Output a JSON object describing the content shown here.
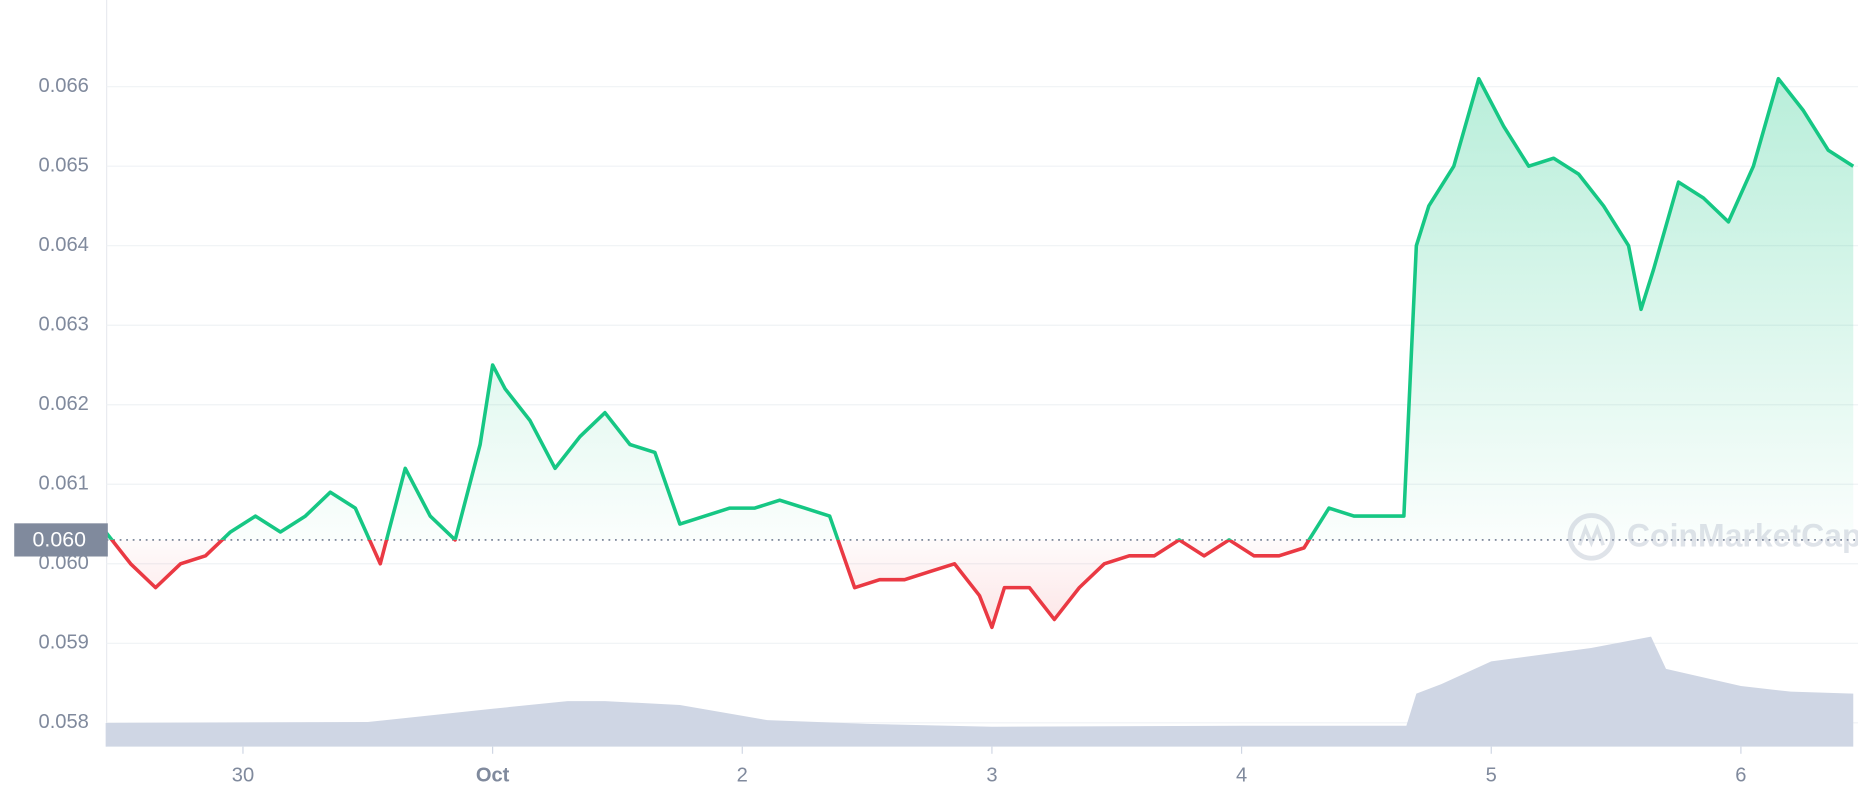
{
  "chart_data": {
    "type": "line",
    "x": [
      -0.55,
      -0.45,
      -0.35,
      -0.25,
      -0.15,
      -0.05,
      0.05,
      0.15,
      0.25,
      0.35,
      0.45,
      0.55,
      0.65,
      0.75,
      0.85,
      0.95,
      1.0,
      1.05,
      1.15,
      1.25,
      1.35,
      1.45,
      1.55,
      1.65,
      1.75,
      1.85,
      1.95,
      2.05,
      2.15,
      2.25,
      2.35,
      2.45,
      2.55,
      2.65,
      2.75,
      2.85,
      2.95,
      3.0,
      3.05,
      3.15,
      3.25,
      3.35,
      3.45,
      3.55,
      3.65,
      3.75,
      3.85,
      3.95,
      4.05,
      4.15,
      4.25,
      4.35,
      4.45,
      4.55,
      4.65,
      4.7,
      4.75,
      4.85,
      4.95,
      5.05,
      5.15,
      5.25,
      5.35,
      5.45,
      5.55,
      5.6,
      5.65,
      5.75,
      5.85,
      5.95,
      6.05,
      6.15,
      6.25,
      6.35,
      6.45
    ],
    "values": [
      0.0604,
      0.06,
      0.0597,
      0.06,
      0.0601,
      0.0604,
      0.0606,
      0.0604,
      0.0606,
      0.0609,
      0.0607,
      0.06,
      0.0612,
      0.0606,
      0.0603,
      0.0615,
      0.0625,
      0.0622,
      0.0618,
      0.0612,
      0.0616,
      0.0619,
      0.0615,
      0.0614,
      0.0605,
      0.0606,
      0.0607,
      0.0607,
      0.0608,
      0.0607,
      0.0606,
      0.0597,
      0.0598,
      0.0598,
      0.0599,
      0.06,
      0.0596,
      0.0592,
      0.0597,
      0.0597,
      0.0593,
      0.0597,
      0.06,
      0.0601,
      0.0601,
      0.0603,
      0.0601,
      0.0603,
      0.0601,
      0.0601,
      0.0602,
      0.0607,
      0.0606,
      0.0606,
      0.0606,
      0.064,
      0.0645,
      0.065,
      0.0661,
      0.0655,
      0.065,
      0.0651,
      0.0649,
      0.0645,
      0.064,
      0.0632,
      0.0637,
      0.0648,
      0.0646,
      0.0643,
      0.065,
      0.0661,
      0.0657,
      0.0652,
      0.065
    ],
    "up_color": "#16c784",
    "down_color": "#ea3943",
    "baseline": {
      "value": 0.0603,
      "label": "0.060"
    },
    "xlim": [
      -0.546,
      6.469
    ],
    "xticks": [
      {
        "value": 0,
        "label": "30"
      },
      {
        "value": 1,
        "label": "Oct",
        "bold": true
      },
      {
        "value": 2,
        "label": "2"
      },
      {
        "value": 3,
        "label": "3"
      },
      {
        "value": 4,
        "label": "4"
      },
      {
        "value": 5,
        "label": "5"
      },
      {
        "value": 6,
        "label": "6"
      }
    ],
    "ylim": [
      0.0577,
      0.06709
    ],
    "yticks": [
      {
        "value": 0.058,
        "label": "0.058"
      },
      {
        "value": 0.059,
        "label": "0.059"
      },
      {
        "value": 0.06,
        "label": "0.060"
      },
      {
        "value": 0.061,
        "label": "0.061"
      },
      {
        "value": 0.062,
        "label": "0.062"
      },
      {
        "value": 0.063,
        "label": "0.063"
      },
      {
        "value": 0.064,
        "label": "0.064"
      },
      {
        "value": 0.065,
        "label": "0.065"
      },
      {
        "value": 0.066,
        "label": "0.066"
      }
    ],
    "grid": true,
    "volume_x": [
      -0.55,
      0.5,
      1.0,
      1.3,
      1.45,
      1.75,
      2.1,
      2.5,
      3.0,
      4.0,
      4.66,
      4.7,
      4.8,
      5.0,
      5.4,
      5.64,
      5.7,
      6.0,
      6.2,
      6.45
    ],
    "volume_values": [
      12.5,
      13,
      20,
      24,
      24,
      22,
      14,
      12,
      10.5,
      11,
      11,
      28,
      33,
      45,
      52,
      58,
      41,
      32,
      29,
      28
    ],
    "volume_color": "#cfd6e4",
    "y2lim": [
      0,
      100
    ],
    "watermark": "CoinMarketCap"
  }
}
